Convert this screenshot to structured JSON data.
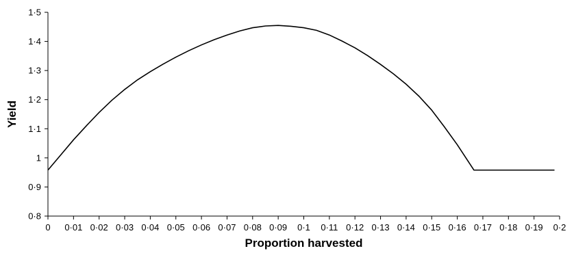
{
  "chart_data": {
    "type": "line",
    "title": "",
    "xlabel": "Proportion harvested",
    "ylabel": "Yield",
    "xlim": [
      0,
      0.2
    ],
    "ylim": [
      0.8,
      1.5
    ],
    "grid": false,
    "legend": "none",
    "line_color": "#000000",
    "x_ticks": [
      0,
      0.01,
      0.02,
      0.03,
      0.04,
      0.05,
      0.06,
      0.07,
      0.08,
      0.09,
      0.1,
      0.11,
      0.12,
      0.13,
      0.14,
      0.15,
      0.16,
      0.17,
      0.18,
      0.19,
      0.2
    ],
    "x_tick_labels": [
      "0",
      "0·01",
      "0·02",
      "0·03",
      "0·04",
      "0·05",
      "0·06",
      "0·07",
      "0·08",
      "0·09",
      "0·1",
      "0·11",
      "0·12",
      "0·13",
      "0·14",
      "0·15",
      "0·16",
      "0·17",
      "0·18",
      "0·19",
      "0·2"
    ],
    "y_ticks": [
      0.8,
      0.9,
      1.0,
      1.1,
      1.2,
      1.3,
      1.4,
      1.5
    ],
    "y_tick_labels": [
      "0·8",
      "0·9",
      "1",
      "1·1",
      "1·2",
      "1·3",
      "1·4",
      "1·5"
    ],
    "series": [
      {
        "x": [
          0,
          0.005,
          0.01,
          0.015,
          0.02,
          0.025,
          0.03,
          0.035,
          0.04,
          0.045,
          0.05,
          0.055,
          0.06,
          0.065,
          0.07,
          0.075,
          0.08,
          0.085,
          0.09,
          0.095,
          0.1,
          0.105,
          0.11,
          0.115,
          0.12,
          0.125,
          0.13,
          0.135,
          0.14,
          0.145,
          0.15,
          0.155,
          0.16,
          0.1665,
          0.17,
          0.175,
          0.18,
          0.185,
          0.19,
          0.195,
          0.198
        ],
        "values": [
          0.958,
          1.01,
          1.062,
          1.11,
          1.156,
          1.198,
          1.235,
          1.268,
          1.296,
          1.322,
          1.346,
          1.368,
          1.388,
          1.406,
          1.422,
          1.436,
          1.447,
          1.453,
          1.455,
          1.452,
          1.447,
          1.438,
          1.422,
          1.401,
          1.378,
          1.351,
          1.321,
          1.289,
          1.253,
          1.212,
          1.164,
          1.106,
          1.045,
          0.958,
          0.958,
          0.958,
          0.958,
          0.958,
          0.958,
          0.958,
          0.958
        ]
      }
    ]
  }
}
